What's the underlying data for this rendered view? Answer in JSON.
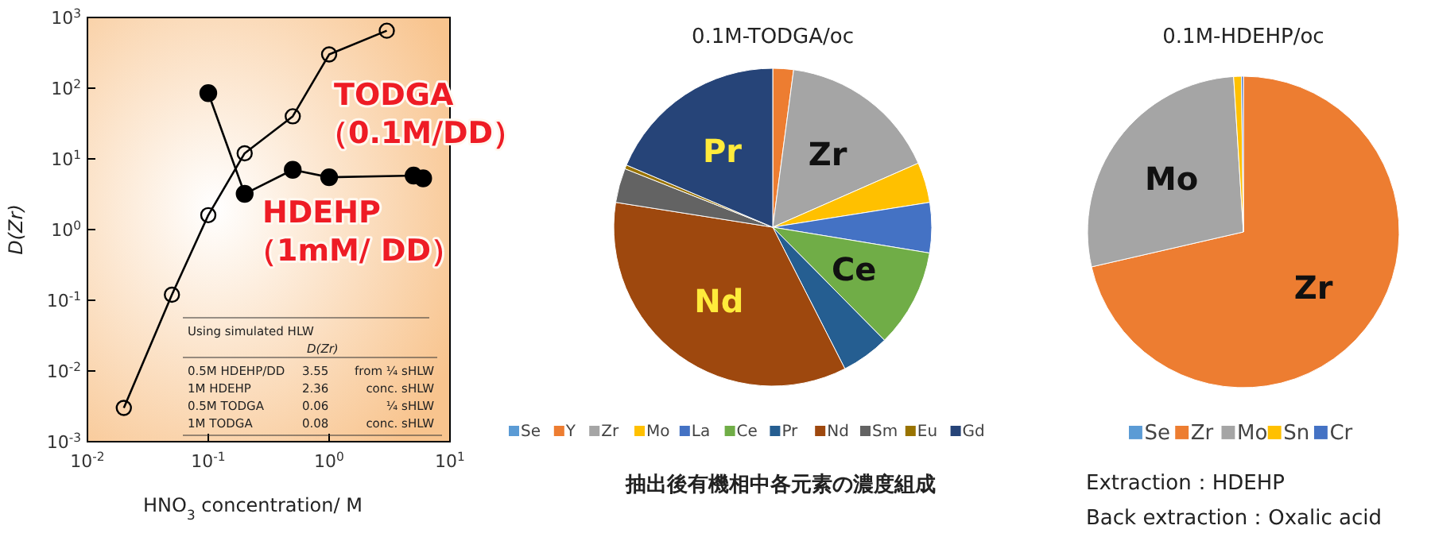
{
  "chart_data": [
    {
      "type": "line",
      "xlabel": "HNO$_{3}$ concentration/ M",
      "ylabel": "D(Zr)",
      "log": "xy",
      "marker": "circle",
      "xlim": [
        0.01,
        10
      ],
      "ylim": [
        0.001,
        1000
      ],
      "xticks": [
        {
          "value": 0.01,
          "label": "10$^{-2}$"
        },
        {
          "value": 0.1,
          "label": "10$^{-1}$"
        },
        {
          "value": 1,
          "label": "10$^{0}$"
        },
        {
          "value": 10,
          "label": "10$^{1}$"
        }
      ],
      "yticks": [
        {
          "value": 0.001,
          "label": "10$^{-3}$"
        },
        {
          "value": 0.01,
          "label": "10$^{-2}$"
        },
        {
          "value": 0.1,
          "label": "10$^{-1}$"
        },
        {
          "value": 1,
          "label": "10$^{0}$"
        },
        {
          "value": 10,
          "label": "10$^{1}$"
        },
        {
          "value": 100,
          "label": "10$^{2}$"
        },
        {
          "value": 1000,
          "label": "10$^{3}$"
        }
      ],
      "series": [
        {
          "name": "TODGA（0.1M/DD）",
          "color": "#000000",
          "x": [
            0.02,
            0.05,
            0.1,
            0.2,
            0.5,
            1,
            3
          ],
          "values": [
            0.003,
            0.12,
            1.6,
            12,
            40,
            300,
            650
          ]
        },
        {
          "name": "HDEHP（1mM/ DD）",
          "color": "#000000",
          "x": [
            0.1,
            0.2,
            0.5,
            1,
            5,
            6
          ],
          "values": [
            85,
            3.2,
            7,
            5.5,
            5.8,
            5.3
          ]
        }
      ],
      "annotations": [
        "Using simulated HLW",
        "D(Zr)",
        "0.5M HDEHP/DD",
        "3.55",
        "from ¼ sHLW",
        "1M HDEHP",
        "2.36",
        "conc. sHLW",
        "0.5M TODGA",
        "0.06",
        "¼ sHLW",
        "1M TODGA",
        "0.08",
        "conc. sHLW"
      ]
    },
    {
      "type": "pie",
      "title": "0.1M-TODGA/oc",
      "legend": "bottom",
      "categories": [
        "Se",
        "Y",
        "Zr",
        "Mo",
        "La",
        "Ce",
        "Pr",
        "Nd",
        "Sm",
        "Eu",
        "Gd"
      ],
      "values": [
        0,
        2.1,
        16.3,
        4.1,
        5.1,
        10,
        4.9,
        35,
        3.5,
        0.4,
        18.6
      ],
      "colors": [
        "#5b9bd5",
        "#ed7d31",
        "#a5a5a5",
        "#ffc000",
        "#4472c4",
        "#70ad47",
        "#255e91",
        "#9e480e",
        "#636363",
        "#997300",
        "#264478"
      ],
      "annotations": [
        {
          "text": "Zr",
          "x": "Zr"
        },
        {
          "text": "Ce",
          "x": "Ce"
        },
        {
          "text": "Nd",
          "x": "Nd"
        },
        {
          "text": "Pr",
          "x": "Gd"
        },
        "抽出後有機相中各元素の濃度組成"
      ]
    },
    {
      "type": "pie",
      "title": "0.1M-HDEHP/oc",
      "legend": "bottom",
      "categories": [
        "Se",
        "Zr",
        "Mo",
        "Sn",
        "Cr"
      ],
      "values": [
        null,
        71.4,
        27.6,
        0.8,
        0.2
      ],
      "colors": [
        "#5b9bd5",
        "#ed7d31",
        "#a5a5a5",
        "#ffc000",
        "#4472c4"
      ],
      "annotations": [
        {
          "text": "Mo",
          "x": "Mo"
        },
        {
          "text": "Zr",
          "x": "Zr"
        },
        "Extraction：HDEHP",
        "Back extraction：Oxalic acid"
      ]
    }
  ]
}
